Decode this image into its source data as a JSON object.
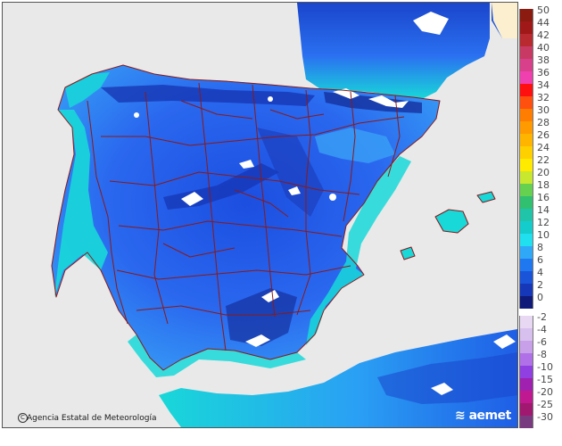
{
  "map": {
    "credit": "Agencia Estatal de Meteorología",
    "credit_icon": "copyright-icon",
    "logo_text": "aemet",
    "colors": {
      "sea": "#e9e9e9",
      "land_base": "#2a6af0",
      "land_deep": "#1a3fc8",
      "coast_cyan": "#18d8d8",
      "border_line": "#8a1a1a",
      "snow": "#ffffff"
    }
  },
  "legend": {
    "items": [
      {
        "label": "50",
        "color": "#8b1a10"
      },
      {
        "label": "44",
        "color": "#a01818"
      },
      {
        "label": "42",
        "color": "#b82a30"
      },
      {
        "label": "40",
        "color": "#c83a64"
      },
      {
        "label": "38",
        "color": "#d8408c"
      },
      {
        "label": "36",
        "color": "#f040b0"
      },
      {
        "label": "34",
        "color": "#ff1010"
      },
      {
        "label": "32",
        "color": "#ff5010"
      },
      {
        "label": "30",
        "color": "#ff7d00"
      },
      {
        "label": "28",
        "color": "#ff9a00"
      },
      {
        "label": "26",
        "color": "#ffb400"
      },
      {
        "label": "24",
        "color": "#ffd000"
      },
      {
        "label": "22",
        "color": "#ffea00"
      },
      {
        "label": "20",
        "color": "#c8e830"
      },
      {
        "label": "18",
        "color": "#66d050"
      },
      {
        "label": "16",
        "color": "#30c070"
      },
      {
        "label": "14",
        "color": "#20c4a8"
      },
      {
        "label": "12",
        "color": "#14cccc"
      },
      {
        "label": "10",
        "color": "#20e0f0"
      },
      {
        "label": "8",
        "color": "#30a8f8"
      },
      {
        "label": "6",
        "color": "#2078f0"
      },
      {
        "label": "4",
        "color": "#1a54d8"
      },
      {
        "label": "2",
        "color": "#1638b8"
      },
      {
        "label": "0",
        "color": "#101a78"
      },
      {
        "label": "-2",
        "color": "#e8d8f4"
      },
      {
        "label": "-4",
        "color": "#d8c0ee"
      },
      {
        "label": "-6",
        "color": "#c8a0ea"
      },
      {
        "label": "-8",
        "color": "#b070e8"
      },
      {
        "label": "-10",
        "color": "#9040e0"
      },
      {
        "label": "-15",
        "color": "#a020b0"
      },
      {
        "label": "-20",
        "color": "#c01890"
      },
      {
        "label": "-25",
        "color": "#a01870"
      },
      {
        "label": "-30",
        "color": "#7a3a80"
      }
    ]
  }
}
